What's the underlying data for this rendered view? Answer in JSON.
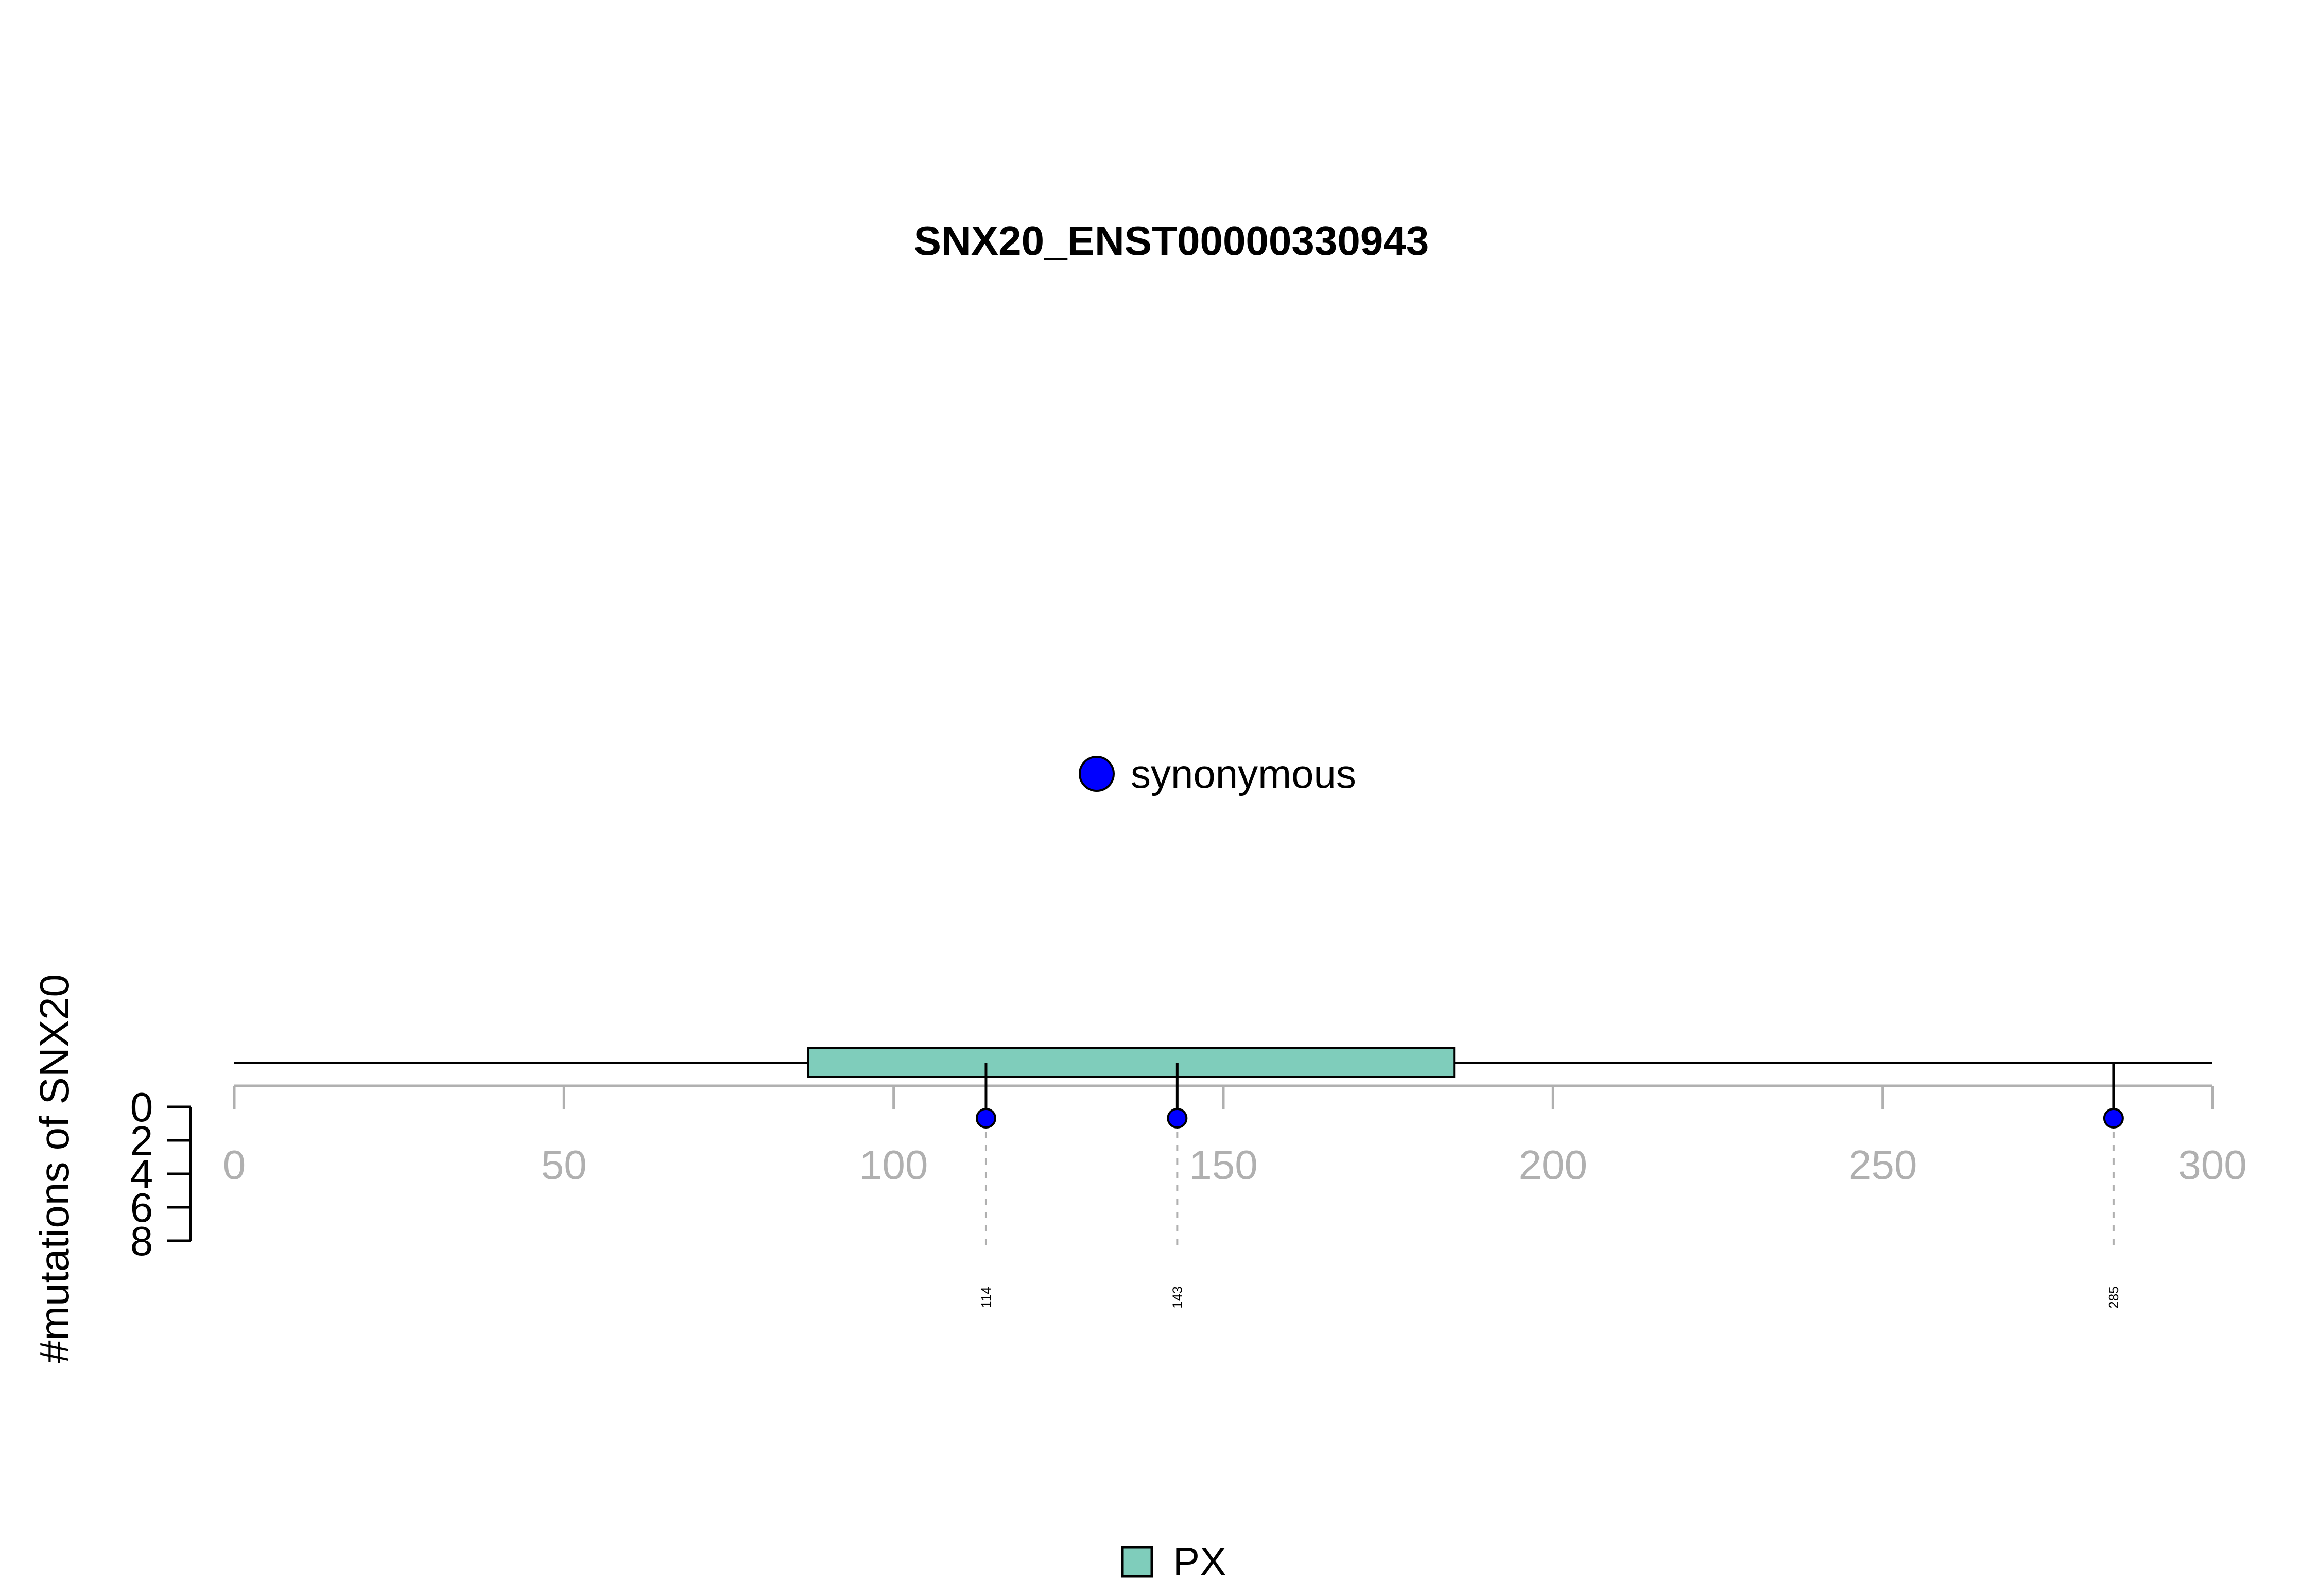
{
  "chart_data": {
    "type": "lollipop",
    "title": "SNX20_ENST00000330943",
    "ylabel": "#mutations of SNX20",
    "protein_length": 300,
    "xlim": [
      0,
      300
    ],
    "x_ticks": [
      0,
      50,
      100,
      150,
      200,
      250,
      300
    ],
    "y_ticks": [
      0,
      2,
      4,
      6,
      8
    ],
    "ylim": [
      0,
      8
    ],
    "domains": [
      {
        "name": "PX",
        "start": 87,
        "end": 185,
        "color": "#7fcdbb"
      }
    ],
    "mutations": [
      {
        "position": 114,
        "count": 1,
        "type": "synonymous",
        "label": "114"
      },
      {
        "position": 143,
        "count": 1,
        "type": "synonymous",
        "label": "143"
      },
      {
        "position": 285,
        "count": 1,
        "type": "synonymous",
        "label": "285"
      }
    ],
    "mutation_legend": [
      {
        "label": "synonymous",
        "color": "#0000ff"
      }
    ],
    "domain_legend": [
      {
        "label": "PX",
        "color": "#7fcdbb"
      }
    ]
  }
}
